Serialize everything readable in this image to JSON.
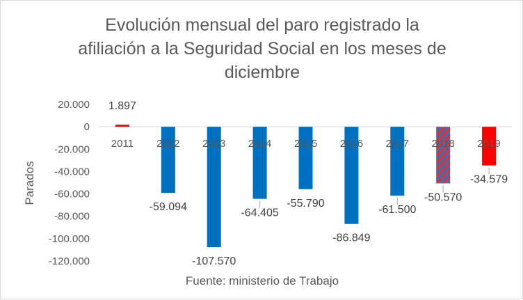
{
  "chart_data": {
    "type": "bar",
    "title_lines": [
      "Evolución mensual del paro registrado la",
      "afiliación a la Seguridad Social en los meses de",
      "diciembre"
    ],
    "ylabel": "Parados",
    "xlabel": "",
    "source": "Fuente: ministerio de Trabajo",
    "ylim": [
      -120000,
      20000
    ],
    "y_ticks": [
      20000,
      0,
      -20000,
      -40000,
      -60000,
      -80000,
      -100000,
      -120000
    ],
    "y_tick_labels": [
      "20.000",
      "0",
      "-20.000",
      "-40.000",
      "-60.000",
      "-80.000",
      "-100.000",
      "-120.000"
    ],
    "categories": [
      "2011",
      "2012",
      "2013",
      "2014",
      "2015",
      "2016",
      "2017",
      "2018",
      "2019"
    ],
    "values": [
      1897,
      -59094,
      -107570,
      -64405,
      -55790,
      -86849,
      -61500,
      -50570,
      -34579
    ],
    "data_labels": [
      "1.897",
      "-59.094",
      "-107.570",
      "-64.405",
      "-55.790",
      "-86.849",
      "-61.500",
      "-50.570",
      "-34.579"
    ],
    "bar_styles": [
      "red",
      "blue",
      "blue",
      "blue",
      "blue",
      "blue",
      "blue",
      "hatched",
      "red"
    ],
    "colors": {
      "blue": "#0070c0",
      "red": "#ff0000",
      "hatch_blue": "#2e75b6",
      "hatch_red": "#e0303c"
    },
    "grid": false,
    "legend": "none"
  }
}
